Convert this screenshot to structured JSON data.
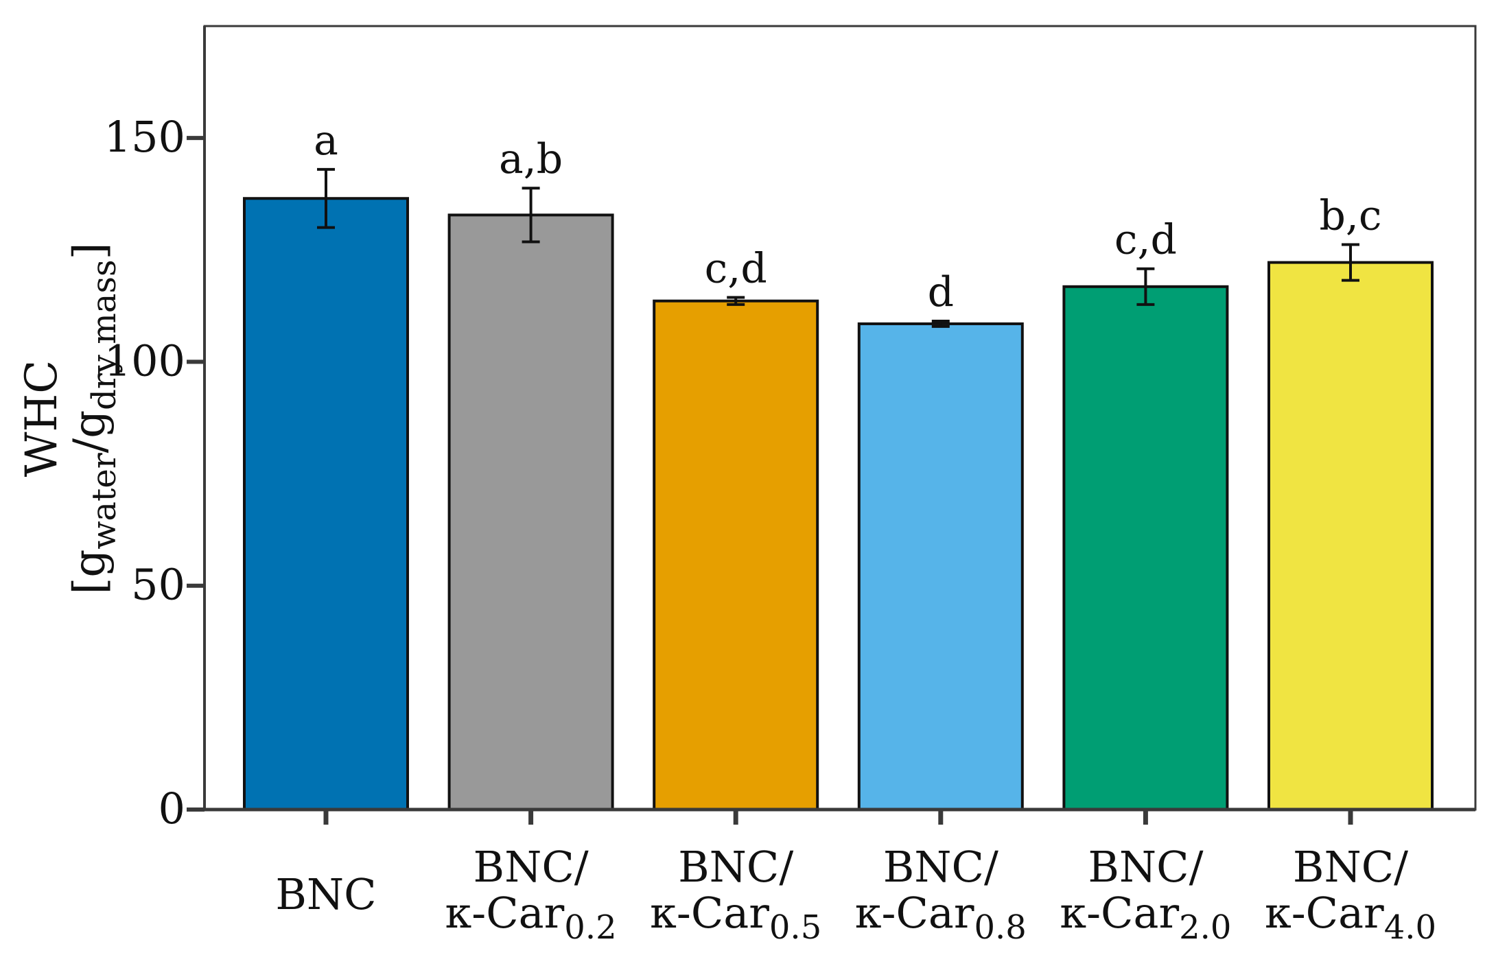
{
  "chart_data": {
    "type": "bar",
    "title": "",
    "xlabel": "",
    "ylabel": "WHC",
    "ylabel_unit": {
      "open": "[g",
      "sub1": "water",
      "mid": "/g",
      "sub2": "dry mass",
      "close": "]"
    },
    "ylim": [
      0,
      175
    ],
    "yticks": [
      0,
      50,
      100,
      150
    ],
    "categories": [
      {
        "line1": "BNC",
        "line2": "",
        "sub": ""
      },
      {
        "line1": "BNC/",
        "line2": "κ-Car",
        "sub": "0.2"
      },
      {
        "line1": "BNC/",
        "line2": "κ-Car",
        "sub": "0.5"
      },
      {
        "line1": "BNC/",
        "line2": "κ-Car",
        "sub": "0.8"
      },
      {
        "line1": "BNC/",
        "line2": "κ-Car",
        "sub": "2.0"
      },
      {
        "line1": "BNC/",
        "line2": "κ-Car",
        "sub": "4.0"
      }
    ],
    "values": [
      136.5,
      132.8,
      113.6,
      108.5,
      116.8,
      122.2
    ],
    "errors": [
      6.5,
      6.0,
      0.8,
      0.6,
      4.0,
      4.0
    ],
    "significance": [
      "a",
      "a,b",
      "c,d",
      "d",
      "c,d",
      "b,c"
    ],
    "colors": [
      "#0072B2",
      "#999999",
      "#E69F00",
      "#56B4E9",
      "#009E73",
      "#F0E442"
    ]
  }
}
